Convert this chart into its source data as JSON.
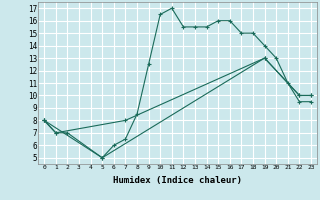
{
  "xlabel": "Humidex (Indice chaleur)",
  "ylabel": "",
  "bg_color": "#cce8ec",
  "line_color": "#1a6b5a",
  "grid_color": "#ffffff",
  "xlim": [
    -0.5,
    23.5
  ],
  "ylim": [
    4.5,
    17.5
  ],
  "xticks": [
    0,
    1,
    2,
    3,
    4,
    5,
    6,
    7,
    8,
    9,
    10,
    11,
    12,
    13,
    14,
    15,
    16,
    17,
    18,
    19,
    20,
    21,
    22,
    23
  ],
  "yticks": [
    5,
    6,
    7,
    8,
    9,
    10,
    11,
    12,
    13,
    14,
    15,
    16,
    17
  ],
  "line1_x": [
    0,
    1,
    2,
    5,
    6,
    7,
    8,
    9,
    10,
    11,
    12,
    13,
    14,
    15,
    16,
    17,
    18,
    19,
    20,
    21,
    22,
    23
  ],
  "line1_y": [
    8,
    7,
    7,
    5,
    6,
    6.5,
    8.5,
    12.5,
    16.5,
    17,
    15.5,
    15.5,
    15.5,
    16,
    16,
    15,
    15,
    14,
    13,
    11,
    9.5,
    9.5
  ],
  "line2_x": [
    0,
    1,
    7,
    19,
    22,
    23
  ],
  "line2_y": [
    8,
    7,
    8,
    13,
    10,
    10
  ],
  "line3_x": [
    0,
    5,
    19,
    22,
    23
  ],
  "line3_y": [
    8,
    5,
    13,
    10,
    10
  ]
}
